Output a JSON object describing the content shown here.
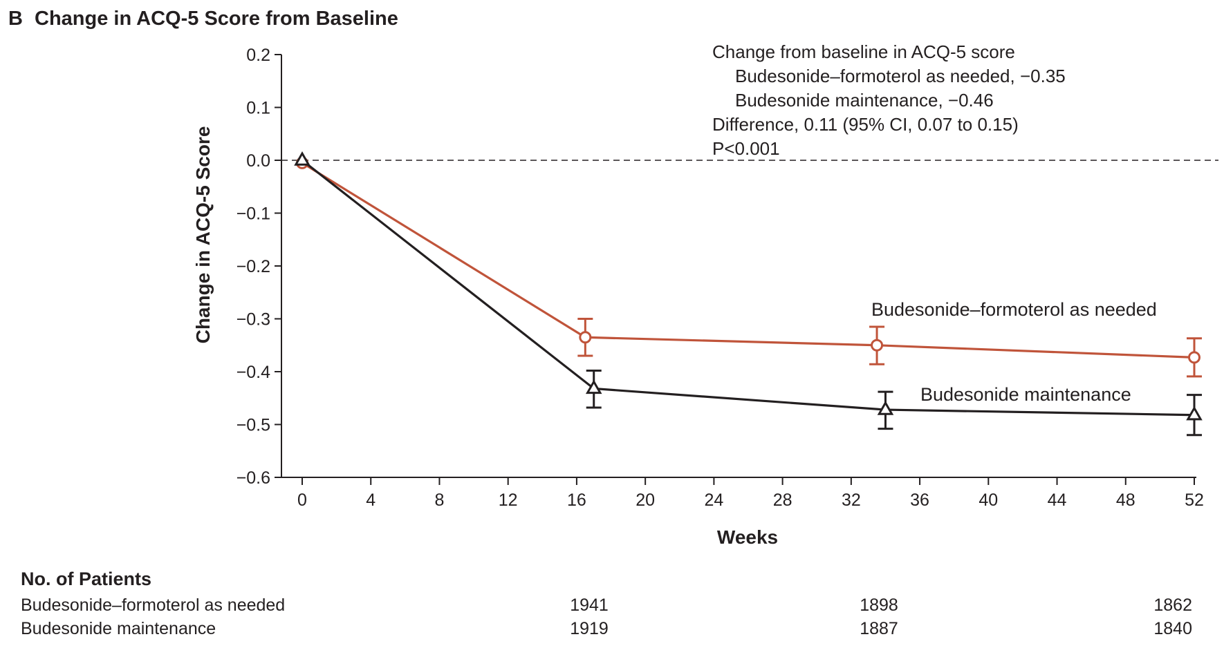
{
  "panel": {
    "letter": "B",
    "title": "Change in ACQ-5 Score from Baseline"
  },
  "chart_data": {
    "type": "line",
    "title": "Change in ACQ-5 Score from Baseline",
    "xlabel": "Weeks",
    "ylabel": "Change in ACQ-5 Score",
    "xlim": [
      -2,
      53
    ],
    "ylim": [
      -0.6,
      0.2
    ],
    "xticks": [
      0,
      4,
      8,
      12,
      16,
      20,
      24,
      28,
      32,
      36,
      40,
      44,
      48,
      52
    ],
    "yticks": [
      0.2,
      0.1,
      0.0,
      -0.1,
      -0.2,
      -0.3,
      -0.4,
      -0.5,
      -0.6
    ],
    "ytick_labels": [
      "0.2",
      "0.1",
      "0.0",
      "−0.1",
      "−0.2",
      "−0.3",
      "−0.4",
      "−0.5",
      "−0.6"
    ],
    "reference_line": {
      "y": 0.0,
      "style": "dashed"
    },
    "series": [
      {
        "name": "Budesonide–formoterol as needed",
        "color": "#c0543a",
        "marker": "circle",
        "x": [
          0,
          16.5,
          33.5,
          52
        ],
        "y": [
          -0.005,
          -0.335,
          -0.35,
          -0.373
        ],
        "err_low": [
          null,
          -0.37,
          -0.386,
          -0.409
        ],
        "err_high": [
          null,
          -0.3,
          -0.315,
          -0.337
        ]
      },
      {
        "name": "Budesonide maintenance",
        "color": "#231f20",
        "marker": "triangle",
        "x": [
          0,
          17,
          34,
          52
        ],
        "y": [
          0.0,
          -0.432,
          -0.472,
          -0.482
        ],
        "err_low": [
          null,
          -0.468,
          -0.508,
          -0.52
        ],
        "err_high": [
          null,
          -0.398,
          -0.438,
          -0.444
        ]
      }
    ],
    "annotation_lines": [
      "Change from baseline in ACQ-5 score",
      "Budesonide–formoterol as needed, −0.35",
      "Budesonide maintenance, −0.46",
      "Difference, 0.11 (95% CI, 0.07 to 0.15)",
      "P<0.001"
    ],
    "patients_table": {
      "header": "No. of Patients",
      "rows": [
        {
          "label": "Budesonide–formoterol as needed",
          "values": [
            "1941",
            "1898",
            "1862"
          ]
        },
        {
          "label": "Budesonide maintenance",
          "values": [
            "1919",
            "1887",
            "1840"
          ]
        }
      ]
    }
  }
}
